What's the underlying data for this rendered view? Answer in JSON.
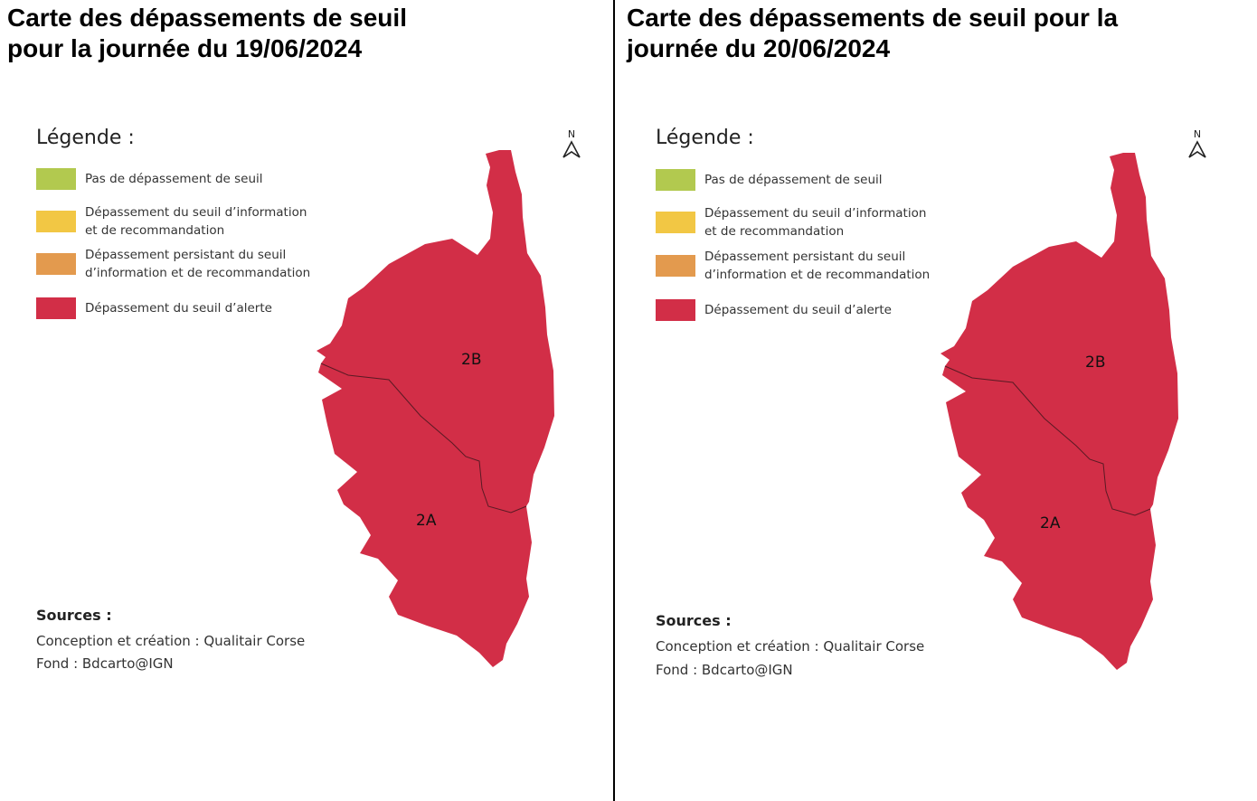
{
  "maps": [
    {
      "title": "Carte des dépassements de seuil pour la journée du 19/06/2024",
      "title_lines": [
        "Carte des dépassements de seuil",
        "pour la journée du 19/06/2024"
      ],
      "region_2A": "Dépassement du seuil d'alerte",
      "region_2B": "Dépassement du seuil d'alerte"
    },
    {
      "title": "Carte des dépassements de seuil pour la journée du 20/06/2024",
      "title_lines": [
        "Carte des dépassements de seuil pour la",
        "journée du 20/06/2024"
      ],
      "region_2A": "Dépassement du seuil d'alerte",
      "region_2B": "Dépassement du seuil d'alerte"
    }
  ],
  "legend": {
    "title": "Légende :",
    "items": [
      {
        "label_lines": [
          "Pas de dépassement de seuil"
        ],
        "color": "#b2c94f"
      },
      {
        "label_lines": [
          "Dépassement du seuil d’information",
          "et de recommandation"
        ],
        "color": "#f2c744"
      },
      {
        "label_lines": [
          "Dépassement persistant du seuil",
          "d’information et de recommandation"
        ],
        "color": "#e39a4e"
      },
      {
        "label_lines": [
          "Dépassement du seuil d’alerte"
        ],
        "color": "#d22e47"
      }
    ]
  },
  "labels": {
    "dept_2A": "2A",
    "dept_2B": "2B",
    "north": "N"
  },
  "sources": {
    "title": "Sources :",
    "credit": "Conception et création : Qualitair Corse",
    "base": "Fond : Bdcarto@IGN"
  },
  "colors": {
    "alert": "#d22e47",
    "border": "#5a1a24"
  }
}
